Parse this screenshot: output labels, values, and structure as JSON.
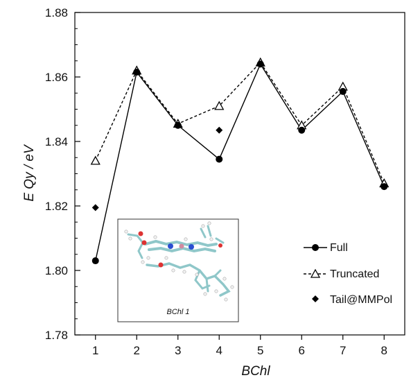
{
  "chart_data": {
    "type": "line",
    "title": "",
    "xlabel": "BChl",
    "ylabel": "E Qy / eV",
    "x": [
      1,
      2,
      3,
      4,
      5,
      6,
      7,
      8
    ],
    "xticks": [
      "1",
      "2",
      "3",
      "4",
      "5",
      "6",
      "7",
      "8"
    ],
    "xlim": [
      0.5,
      8.5
    ],
    "ylim": [
      1.78,
      1.88
    ],
    "yticks": [
      "1.78",
      "1.80",
      "1.82",
      "1.84",
      "1.86",
      "1.88"
    ],
    "grid": false,
    "legend_position": "bottom-right",
    "series": [
      {
        "name": "Full",
        "marker": "filled-circle",
        "line": "solid",
        "color": "#000000",
        "values": [
          1.803,
          1.8615,
          1.845,
          1.8345,
          1.864,
          1.8435,
          1.8555,
          1.826
        ]
      },
      {
        "name": "Truncated",
        "marker": "open-triangle",
        "line": "dashed",
        "color": "#000000",
        "values": [
          1.834,
          1.862,
          1.8455,
          1.851,
          1.8645,
          1.845,
          1.857,
          1.827
        ]
      },
      {
        "name": "Tail@MMPol",
        "marker": "filled-diamond",
        "line": "none",
        "color": "#000000",
        "points": [
          {
            "x": 1,
            "y": 1.8195
          },
          {
            "x": 4,
            "y": 1.8435
          }
        ]
      }
    ],
    "inset": {
      "caption": "BChl 1",
      "content": "molecular-structure-image"
    }
  }
}
